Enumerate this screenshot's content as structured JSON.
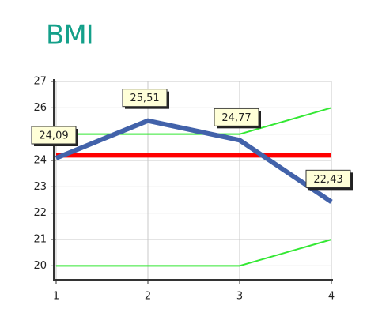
{
  "chart_data": {
    "type": "line",
    "title": "BMI",
    "x": [
      1,
      2,
      3,
      4
    ],
    "xlim": [
      1,
      4
    ],
    "xticks": [
      1,
      2,
      3,
      4
    ],
    "ylim": [
      19.5,
      27
    ],
    "yticks": [
      20,
      21,
      22,
      23,
      24,
      25,
      26,
      27
    ],
    "grid": true,
    "series": [
      {
        "color": "#33e833",
        "values": [
          25,
          25,
          25,
          26
        ]
      },
      {
        "color": "#33e833",
        "values": [
          20,
          20,
          20,
          21
        ]
      },
      {
        "color": "#ff0000",
        "values": [
          24.2,
          24.2,
          24.2,
          24.2
        ]
      },
      {
        "color": "#4262aa",
        "values": [
          24.09,
          25.51,
          24.77,
          22.43
        ],
        "value_labels": [
          "24,09",
          "25,51",
          "24,77",
          "22,43"
        ]
      }
    ]
  }
}
